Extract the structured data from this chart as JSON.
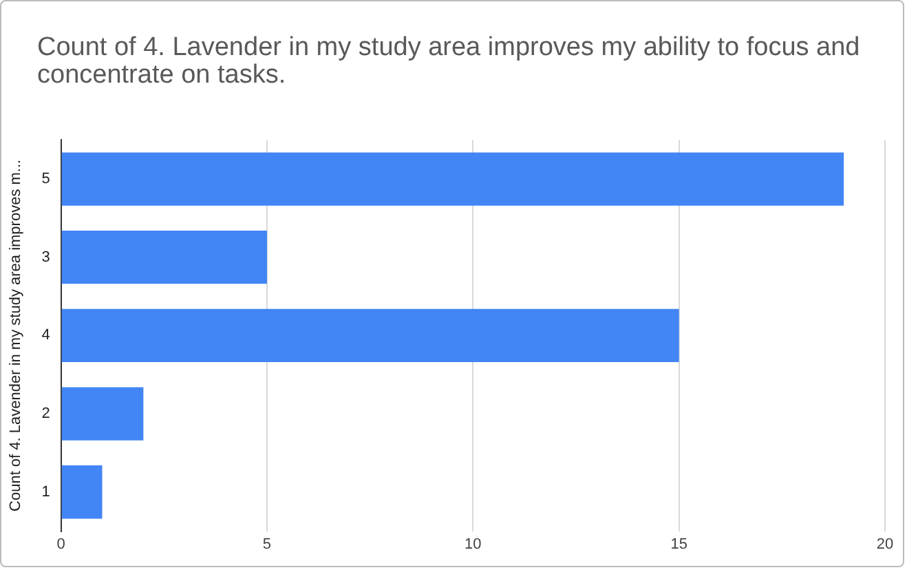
{
  "chart_data": {
    "type": "bar",
    "orientation": "horizontal",
    "title": "Count of 4. Lavender in my study area improves my ability to focus and concentrate on tasks.",
    "ylabel": "Count of 4. Lavender in my study area improves m...",
    "categories": [
      "5",
      "3",
      "4",
      "2",
      "1"
    ],
    "values": [
      19,
      5,
      15,
      2,
      1
    ],
    "color": "#4285f4",
    "xlim": [
      0,
      20
    ],
    "xticks": [
      0,
      5,
      10,
      15,
      20
    ],
    "grid": "x",
    "legend": false
  }
}
